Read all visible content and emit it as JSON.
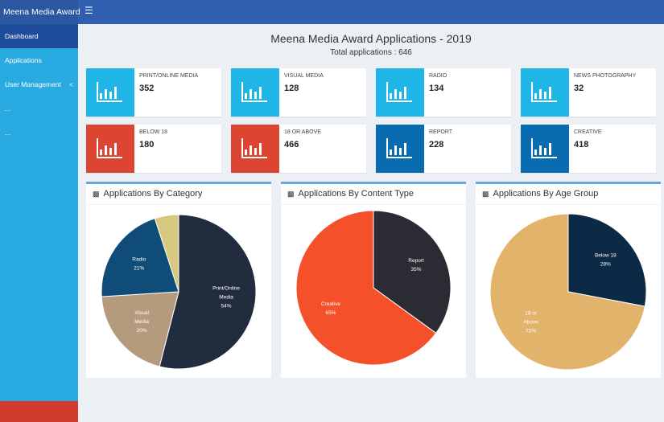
{
  "header": {
    "app_title": "Meena Media Award",
    "menu_icon": "hamburger-icon"
  },
  "sidebar": {
    "items": [
      {
        "label": "Dashboard",
        "active": true
      },
      {
        "label": "Applications"
      },
      {
        "label": "User Management",
        "chevron": "<"
      },
      {
        "label": "..."
      },
      {
        "label": "..."
      }
    ]
  },
  "main": {
    "title": "Meena Media Award Applications - 2019",
    "subtitle": "Total applications : 646"
  },
  "colors": {
    "cyan": "#1fb5e6",
    "red": "#db4532",
    "blue": "#0a6cb0",
    "header": "#2f5fae",
    "sidebar": "#29abe2"
  },
  "stats": [
    {
      "label": "PRINT/ONLINE MEDIA",
      "value": "352",
      "color": "#1fb5e6"
    },
    {
      "label": "VISUAL MEDIA",
      "value": "128",
      "color": "#1fb5e6"
    },
    {
      "label": "RADIO",
      "value": "134",
      "color": "#1fb5e6"
    },
    {
      "label": "NEWS PHOTOGRAPHY",
      "value": "32",
      "color": "#1fb5e6"
    },
    {
      "label": "BELOW 18",
      "value": "180",
      "color": "#db4532"
    },
    {
      "label": "18 OR ABOVE",
      "value": "466",
      "color": "#db4532"
    },
    {
      "label": "REPORT",
      "value": "228",
      "color": "#0a6cb0"
    },
    {
      "label": "CREATIVE",
      "value": "418",
      "color": "#0a6cb0"
    }
  ],
  "chart_data": [
    {
      "type": "pie",
      "title": "Applications By Category",
      "slices": [
        {
          "label": "Print/Online Media",
          "value": 54,
          "text": "54%",
          "color": "#222c3f"
        },
        {
          "label": "Visual Media",
          "value": 20,
          "text": "20%",
          "color": "#b59a7e"
        },
        {
          "label": "Radio",
          "value": 21,
          "text": "21%",
          "color": "#0f4d78"
        },
        {
          "label": "",
          "value": 5,
          "text": "",
          "color": "#d8c77f"
        }
      ]
    },
    {
      "type": "pie",
      "title": "Applications By Content Type",
      "slices": [
        {
          "label": "Report",
          "value": 35,
          "text": "35%",
          "color": "#2b2b33"
        },
        {
          "label": "Creative",
          "value": 65,
          "text": "65%",
          "color": "#f4502a"
        }
      ]
    },
    {
      "type": "pie",
      "title": "Applications By Age Group",
      "slices": [
        {
          "label": "Below 18",
          "value": 28,
          "text": "28%",
          "color": "#0c2a45"
        },
        {
          "label": "18 or Above",
          "value": 72,
          "text": "72%",
          "color": "#e2b36a"
        }
      ]
    }
  ]
}
